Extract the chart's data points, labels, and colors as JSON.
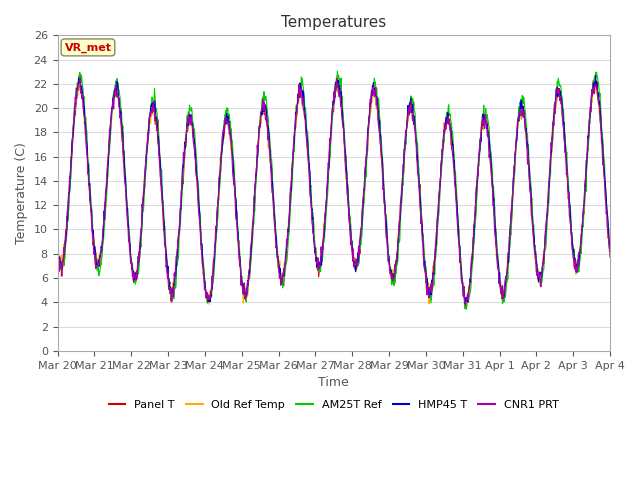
{
  "title": "Temperatures",
  "xlabel": "Time",
  "ylabel": "Temperature (C)",
  "ylim": [
    0,
    26
  ],
  "yticks": [
    0,
    2,
    4,
    6,
    8,
    10,
    12,
    14,
    16,
    18,
    20,
    22,
    24,
    26
  ],
  "date_labels": [
    "Mar 20",
    "Mar 21",
    "Mar 22",
    "Mar 23",
    "Mar 24",
    "Mar 25",
    "Mar 26",
    "Mar 27",
    "Mar 28",
    "Mar 29",
    "Mar 30",
    "Mar 31",
    "Apr 1",
    "Apr 2",
    "Apr 3",
    "Apr 4"
  ],
  "legend_labels": [
    "Panel T",
    "Old Ref Temp",
    "AM25T Ref",
    "HMP45 T",
    "CNR1 PRT"
  ],
  "line_colors": [
    "#cc0000",
    "#ffaa00",
    "#00cc00",
    "#0000cc",
    "#aa00aa"
  ],
  "annotation_text": "VR_met",
  "background_color": "#ffffff",
  "grid_color": "#cccccc",
  "n_points": 1152,
  "days": 15
}
